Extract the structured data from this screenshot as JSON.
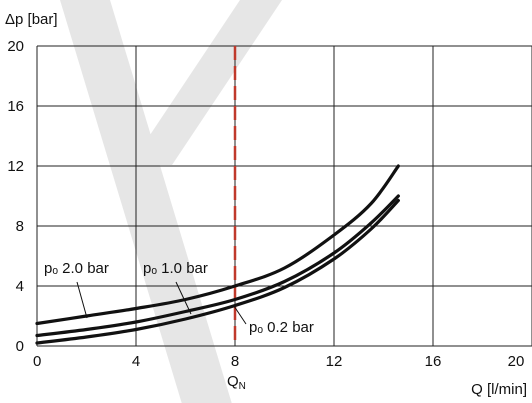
{
  "chart_data": {
    "type": "line",
    "xlabel": "Q [l/min]",
    "ylabel": "Δp [bar]",
    "xlim": [
      0,
      20
    ],
    "ylim": [
      0,
      20
    ],
    "x_ticks": [
      "0",
      "4",
      "8",
      "12",
      "16",
      "20"
    ],
    "y_ticks": [
      "0",
      "4",
      "8",
      "12",
      "16",
      "20"
    ],
    "grid": true,
    "reference_line": {
      "x": 8,
      "label": "QN",
      "color": "#c0392b",
      "style": "dashed"
    },
    "series": [
      {
        "name": "pₒ 2.0 bar",
        "x": [
          0,
          2,
          4,
          6,
          8,
          10,
          12,
          13.5,
          14.6
        ],
        "y": [
          1.5,
          2.0,
          2.5,
          3.1,
          4.0,
          5.2,
          7.4,
          9.5,
          12.0
        ]
      },
      {
        "name": "pₒ 1.0 bar",
        "x": [
          0,
          2,
          4,
          6,
          8,
          10,
          12,
          13.5,
          14.6
        ],
        "y": [
          0.7,
          1.1,
          1.6,
          2.3,
          3.1,
          4.3,
          6.2,
          8.2,
          10.0
        ]
      },
      {
        "name": "pₒ 0.2 bar",
        "x": [
          0,
          2,
          4,
          6,
          8,
          10,
          12,
          13.5,
          14.6
        ],
        "y": [
          0.2,
          0.6,
          1.1,
          1.8,
          2.7,
          3.9,
          5.8,
          7.8,
          9.7
        ]
      }
    ],
    "line_color": "#111111"
  }
}
